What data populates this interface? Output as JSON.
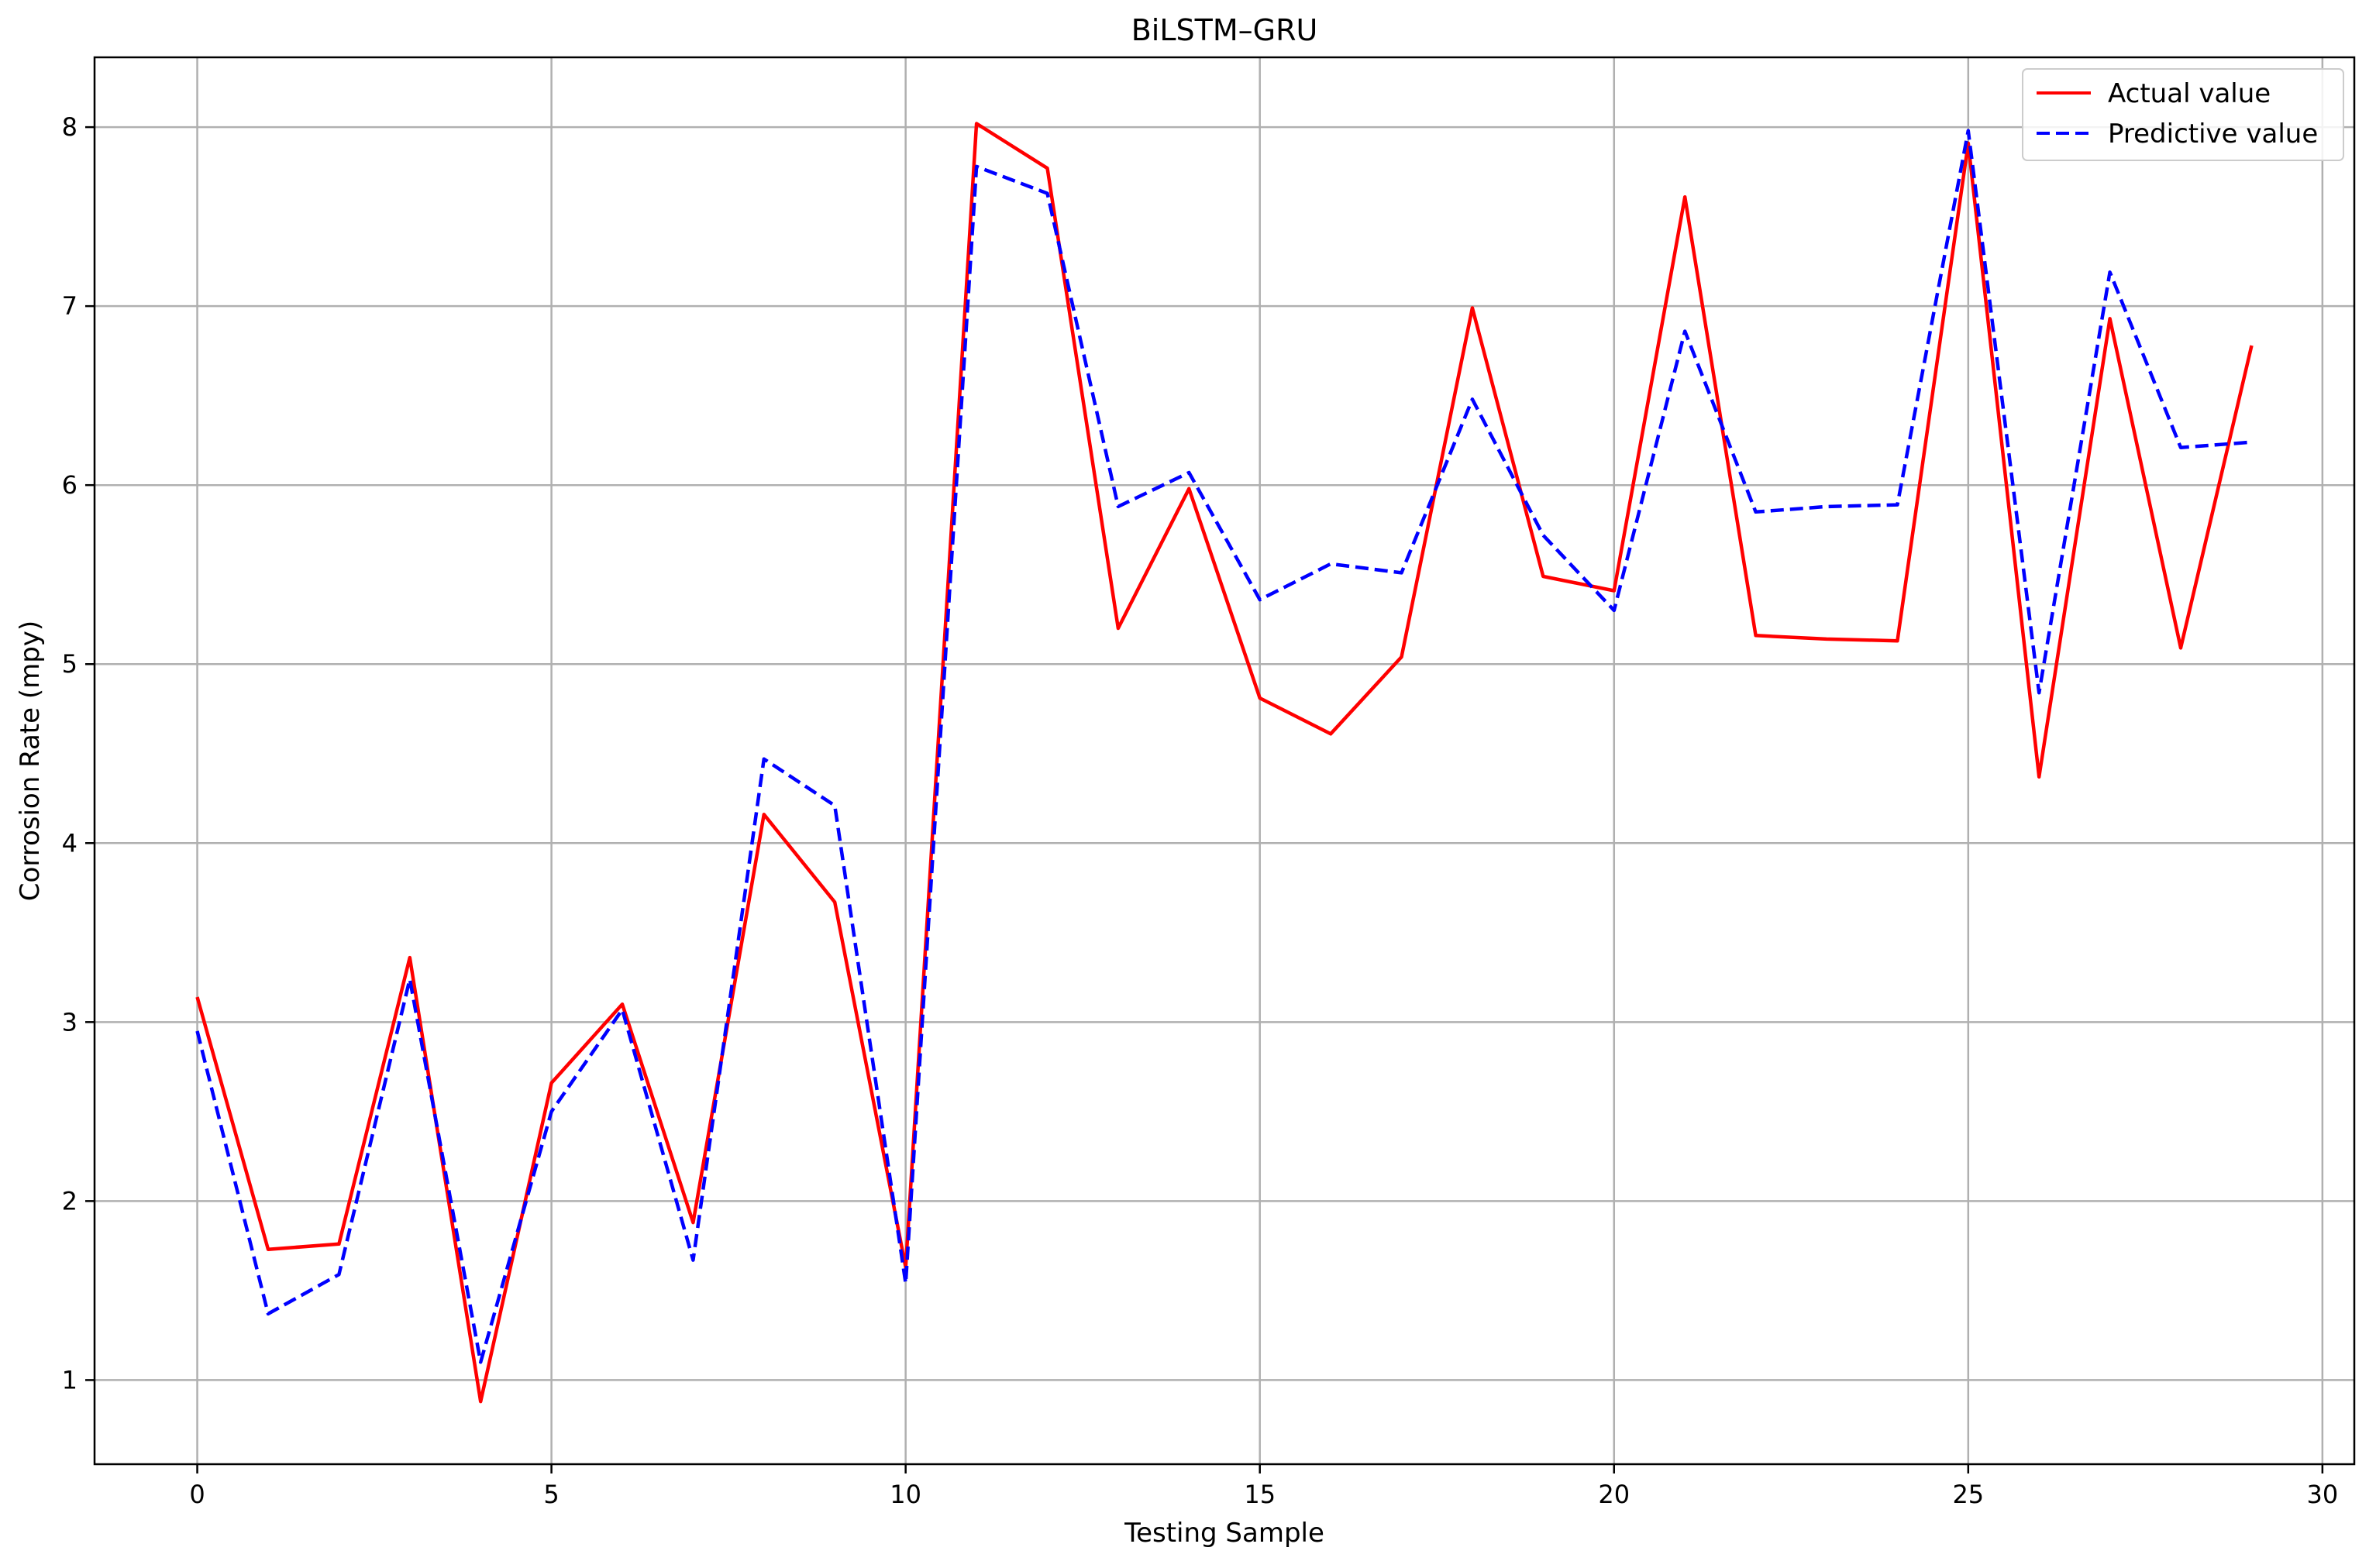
{
  "chart_data": {
    "type": "line",
    "title": "BiLSTM–GRU",
    "xlabel": "Testing Sample",
    "ylabel": "Corrosion Rate (mpy)",
    "xlim": [
      -1.45,
      30.45
    ],
    "ylim": [
      0.53,
      8.39
    ],
    "xticks": [
      0,
      5,
      10,
      15,
      20,
      25,
      30
    ],
    "yticks": [
      1,
      2,
      3,
      4,
      5,
      6,
      7,
      8
    ],
    "xtick_labels": [
      "0",
      "5",
      "10",
      "15",
      "20",
      "25",
      "30"
    ],
    "ytick_labels": [
      "1",
      "2",
      "3",
      "4",
      "5",
      "6",
      "7",
      "8"
    ],
    "grid": true,
    "legend_position": "top-right",
    "x": [
      0,
      1,
      2,
      3,
      4,
      5,
      6,
      7,
      8,
      9,
      10,
      11,
      12,
      13,
      14,
      15,
      16,
      17,
      18,
      19,
      20,
      21,
      22,
      23,
      24,
      25,
      26,
      27,
      28,
      29
    ],
    "series": [
      {
        "name": "Actual value",
        "color": "#ff0000",
        "style": "solid",
        "values": [
          3.14,
          1.73,
          1.76,
          3.36,
          0.88,
          2.66,
          3.1,
          1.88,
          4.16,
          3.67,
          1.63,
          8.02,
          7.77,
          5.2,
          5.98,
          4.81,
          4.61,
          5.04,
          6.99,
          5.49,
          5.41,
          7.61,
          5.16,
          5.14,
          5.13,
          7.91,
          4.37,
          6.93,
          5.09,
          6.78
        ]
      },
      {
        "name": "Predictive value",
        "color": "#0000ff",
        "style": "dashed",
        "values": [
          2.95,
          1.37,
          1.59,
          3.24,
          1.1,
          2.5,
          3.07,
          1.67,
          4.47,
          4.21,
          1.54,
          7.78,
          7.63,
          5.88,
          6.07,
          5.36,
          5.56,
          5.51,
          6.48,
          5.72,
          5.3,
          6.86,
          5.85,
          5.88,
          5.89,
          7.98,
          4.84,
          7.19,
          6.21,
          6.24
        ]
      }
    ]
  }
}
